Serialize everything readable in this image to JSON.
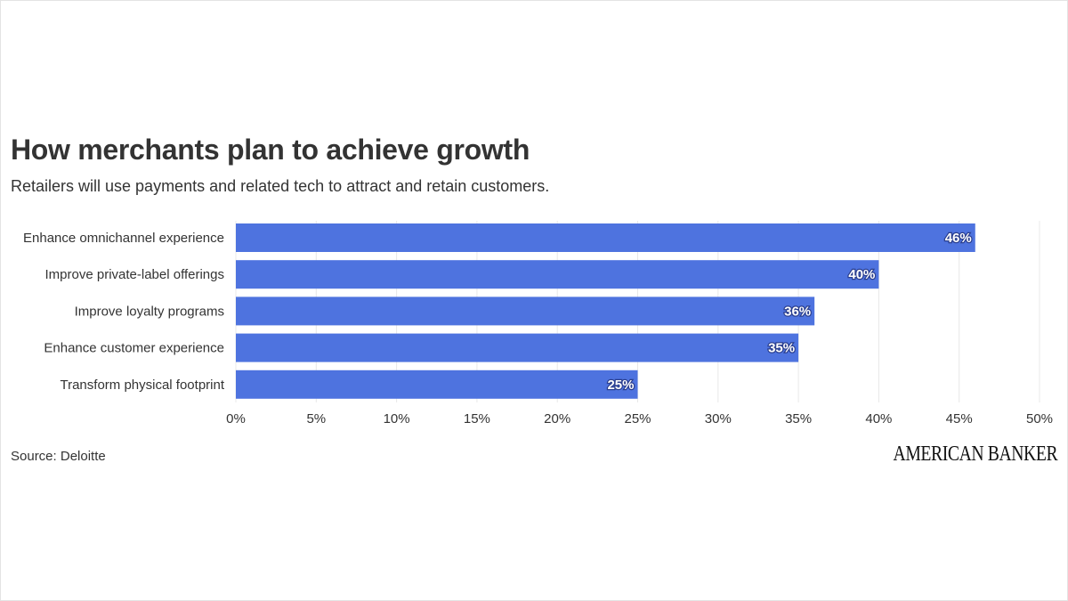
{
  "header": {
    "title": "How merchants plan to achieve growth",
    "subtitle": "Retailers will use payments and related tech to attract and retain customers."
  },
  "footer": {
    "source": "Source: Deloitte",
    "brand": "AMERICAN BANKER"
  },
  "colors": {
    "bar": "#4e73df",
    "grid": "#e8e8e8"
  },
  "chart_data": {
    "type": "bar",
    "orientation": "horizontal",
    "title": "How merchants plan to achieve growth",
    "subtitle": "Retailers will use payments and related tech to attract and retain customers.",
    "categories": [
      "Enhance omnichannel experience",
      "Improve private-label offerings",
      "Improve loyalty programs",
      "Enhance customer experience",
      "Transform physical footprint"
    ],
    "values": [
      46,
      40,
      36,
      35,
      25
    ],
    "data_labels": [
      "46%",
      "40%",
      "36%",
      "35%",
      "25%"
    ],
    "xlim": [
      0,
      50
    ],
    "xticks": [
      0,
      5,
      10,
      15,
      20,
      25,
      30,
      35,
      40,
      45,
      50
    ],
    "xtick_labels": [
      "0%",
      "5%",
      "10%",
      "15%",
      "20%",
      "25%",
      "30%",
      "35%",
      "40%",
      "45%",
      "50%"
    ],
    "xlabel": "",
    "ylabel": "",
    "grid": true,
    "legend": "none"
  }
}
